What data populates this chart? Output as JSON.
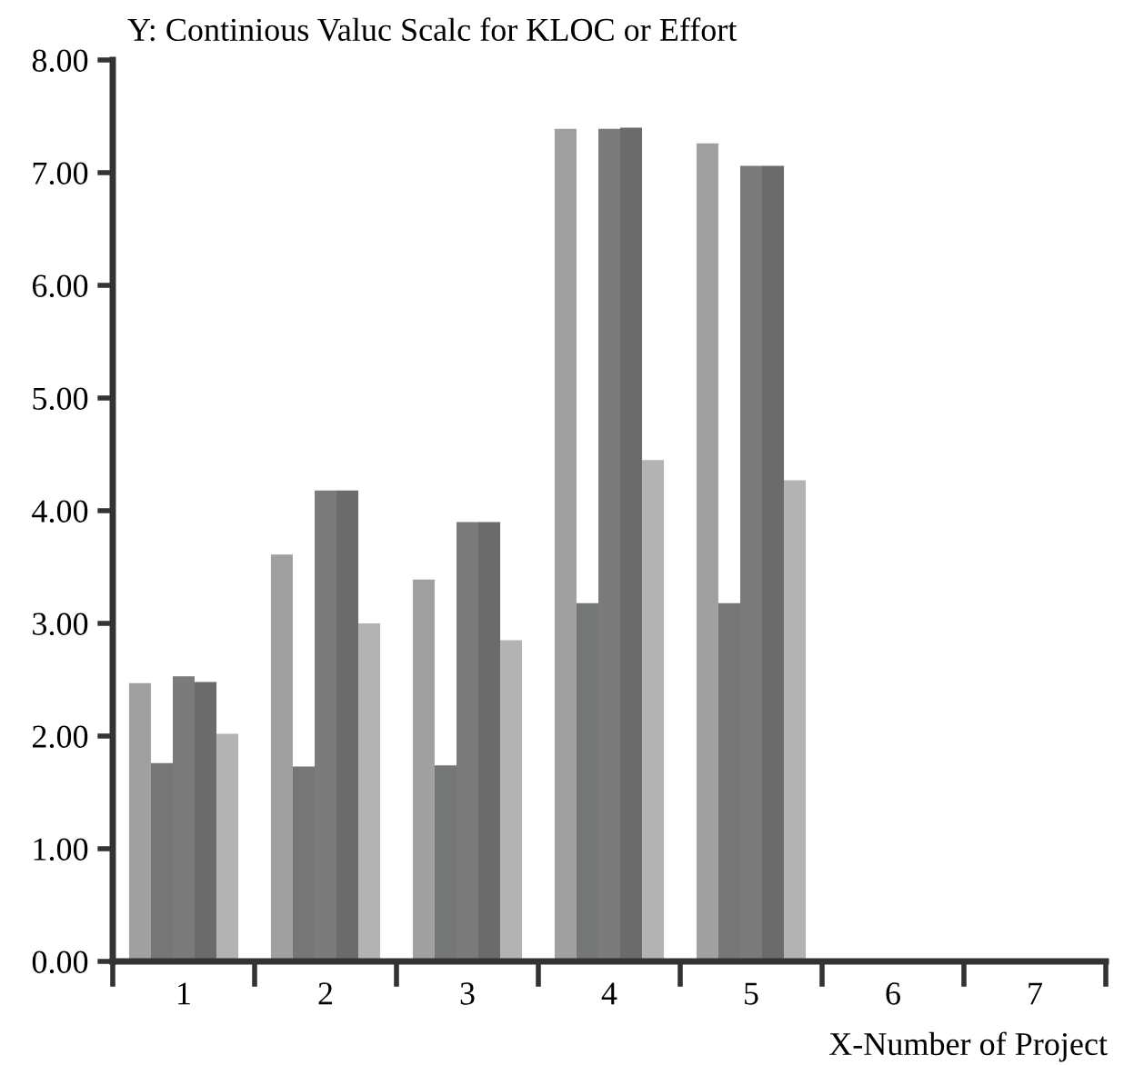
{
  "chart_data": {
    "type": "bar",
    "ylabel": "Y: Continious Valuc Scalc for KLOC or Effort",
    "xlabel": "X-Number of Project",
    "categories": [
      "1",
      "2",
      "3",
      "4",
      "5",
      "6",
      "7"
    ],
    "series": [
      {
        "color": "#a0a0a0",
        "values": [
          2.47,
          3.61,
          3.39,
          7.39,
          7.26,
          null,
          null
        ]
      },
      {
        "color": "#757777",
        "values": [
          1.76,
          1.73,
          1.74,
          3.18,
          3.18,
          null,
          null
        ]
      },
      {
        "color": "#7b7b7b",
        "values": [
          2.53,
          4.18,
          3.9,
          7.39,
          7.06,
          null,
          null
        ]
      },
      {
        "color": "#6b6b6b",
        "values": [
          2.48,
          4.18,
          3.9,
          7.4,
          7.06,
          null,
          null
        ]
      },
      {
        "color": "#b3b3b3",
        "values": [
          2.02,
          3.0,
          2.85,
          4.45,
          4.27,
          null,
          null
        ]
      }
    ],
    "ylim": [
      0,
      8
    ],
    "yticks": [
      {
        "value": 0,
        "label": "0.00"
      },
      {
        "value": 1,
        "label": "1.00"
      },
      {
        "value": 2,
        "label": "2.00"
      },
      {
        "value": 3,
        "label": "3.00"
      },
      {
        "value": 4,
        "label": "4.00"
      },
      {
        "value": 5,
        "label": "5.00"
      },
      {
        "value": 6,
        "label": "6.00"
      },
      {
        "value": 7,
        "label": "7.00"
      },
      {
        "value": 8,
        "label": "8.00"
      }
    ],
    "grid": false,
    "legend": false
  }
}
